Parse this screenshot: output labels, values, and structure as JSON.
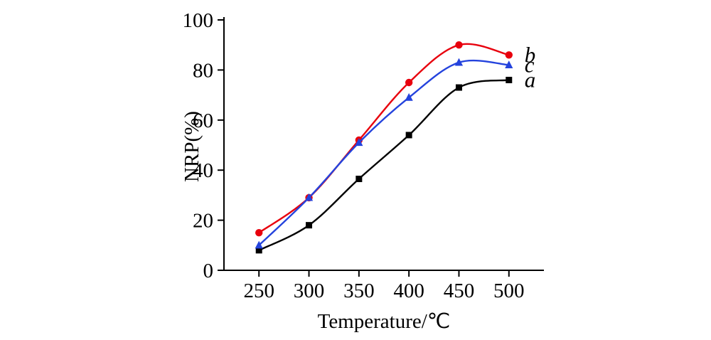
{
  "chart_data": {
    "type": "line",
    "title": "",
    "xlabel": "Temperature/℃",
    "ylabel": "NRP(%)",
    "x": [
      250,
      300,
      350,
      400,
      450,
      500
    ],
    "x_ticks": [
      250,
      300,
      350,
      400,
      450,
      500
    ],
    "y_ticks": [
      0,
      20,
      40,
      60,
      80,
      100
    ],
    "xlim": [
      215,
      535
    ],
    "ylim": [
      0,
      100
    ],
    "grid": false,
    "legend_position": "end-of-line",
    "series": [
      {
        "name": "a",
        "color": "#000000",
        "marker": "square",
        "values": [
          8,
          18,
          36.5,
          54,
          73,
          76
        ]
      },
      {
        "name": "b",
        "color": "#e8000d",
        "marker": "circle",
        "values": [
          15,
          29,
          52,
          75,
          90,
          86
        ]
      },
      {
        "name": "c",
        "color": "#2443dd",
        "marker": "triangle",
        "values": [
          10,
          29,
          51,
          69,
          83,
          82
        ]
      }
    ],
    "axis_color": "#000000"
  }
}
